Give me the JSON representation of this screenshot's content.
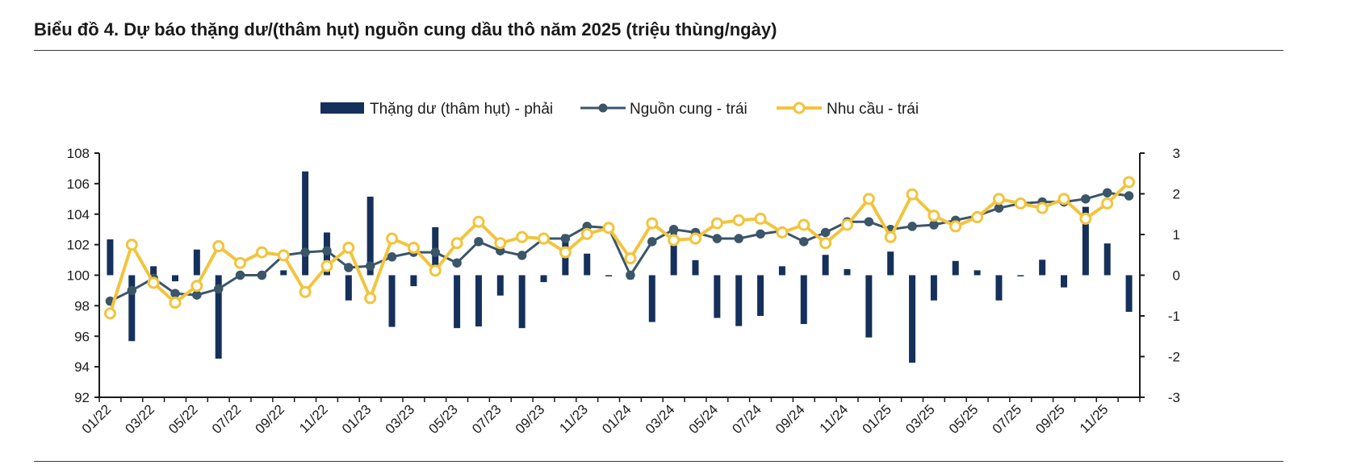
{
  "title": "Biểu đồ 4. Dự báo thặng dư/(thâm hụt) nguồn cung dầu thô năm 2025 (triệu thùng/ngày)",
  "colors": {
    "bar": "#15305a",
    "supply": "#3b5569",
    "demand": "#f2c43d",
    "axis": "#1a1a1a"
  },
  "chart_data": {
    "type": "bar+line",
    "x": [
      "01/22",
      "02/22",
      "03/22",
      "04/22",
      "05/22",
      "06/22",
      "07/22",
      "08/22",
      "09/22",
      "10/22",
      "11/22",
      "12/22",
      "01/23",
      "02/23",
      "03/23",
      "04/23",
      "05/23",
      "06/23",
      "07/23",
      "08/23",
      "09/23",
      "10/23",
      "11/23",
      "12/23",
      "01/24",
      "02/24",
      "03/24",
      "04/24",
      "05/24",
      "06/24",
      "07/24",
      "08/24",
      "09/24",
      "10/24",
      "11/24",
      "12/24",
      "01/25",
      "02/25",
      "03/25",
      "04/25",
      "05/25",
      "06/25",
      "07/25",
      "08/25",
      "09/25",
      "10/25",
      "11/25",
      "12/25"
    ],
    "x_tick_labels": [
      "01/22",
      "03/22",
      "05/22",
      "07/22",
      "09/22",
      "11/22",
      "01/23",
      "03/23",
      "05/23",
      "07/23",
      "09/23",
      "11/23",
      "01/24",
      "03/24",
      "05/24",
      "07/24",
      "09/24",
      "11/24",
      "01/25",
      "03/25",
      "05/25",
      "07/25",
      "09/25",
      "11/25"
    ],
    "y_left": {
      "ticks": [
        92,
        94,
        96,
        98,
        100,
        102,
        104,
        106,
        108
      ],
      "range": [
        92,
        108
      ]
    },
    "y_right": {
      "ticks": [
        -3,
        -2,
        -1,
        0,
        1,
        2,
        3
      ],
      "range": [
        -3,
        3
      ]
    },
    "series": [
      {
        "name": "Thặng dư (thâm hụt) - phải",
        "kind": "bar",
        "axis": "right",
        "values": [
          0.88,
          -1.62,
          0.22,
          -0.15,
          0.63,
          -2.05,
          -0.05,
          -0.03,
          0.12,
          2.55,
          1.05,
          -0.62,
          1.93,
          -1.27,
          -0.27,
          1.18,
          -1.3,
          -1.26,
          -0.5,
          -1.3,
          -0.17,
          1.0,
          0.53,
          -0.02,
          -0.1,
          -1.15,
          1.07,
          0.37,
          -1.05,
          -1.25,
          -1.0,
          0.22,
          -1.2,
          0.5,
          0.15,
          -1.53,
          0.58,
          -2.15,
          -0.62,
          0.35,
          0.12,
          -0.62,
          -0.02,
          0.38,
          -0.3,
          1.68,
          0.78,
          -0.9
        ]
      },
      {
        "name": "Nguồn cung - trái",
        "kind": "line",
        "axis": "left",
        "values": [
          98.3,
          99.0,
          99.8,
          98.8,
          98.7,
          99.1,
          100.0,
          100.0,
          101.3,
          101.5,
          101.6,
          100.5,
          100.6,
          101.2,
          101.5,
          101.5,
          100.8,
          102.2,
          101.6,
          101.3,
          102.4,
          102.4,
          103.2,
          103.1,
          100.0,
          102.2,
          103.0,
          102.8,
          102.4,
          102.4,
          102.7,
          102.9,
          102.2,
          102.8,
          103.5,
          103.5,
          103.0,
          103.2,
          103.3,
          103.6,
          103.9,
          104.4,
          104.7,
          104.8,
          104.8,
          105.0,
          105.4,
          105.2
        ]
      },
      {
        "name": "Nhu cầu - trái",
        "kind": "line",
        "axis": "left",
        "values": [
          97.5,
          102.0,
          99.5,
          98.2,
          99.3,
          101.9,
          100.8,
          101.5,
          101.3,
          98.9,
          100.6,
          101.8,
          98.5,
          102.4,
          101.8,
          100.3,
          102.1,
          103.5,
          102.1,
          102.5,
          102.4,
          101.5,
          102.7,
          103.1,
          101.1,
          103.4,
          102.3,
          102.4,
          103.4,
          103.6,
          103.7,
          102.8,
          103.3,
          102.1,
          103.3,
          105.0,
          102.5,
          105.3,
          103.9,
          103.2,
          103.8,
          105.0,
          104.7,
          104.4,
          105.0,
          103.7,
          104.7,
          106.1
        ]
      }
    ]
  }
}
